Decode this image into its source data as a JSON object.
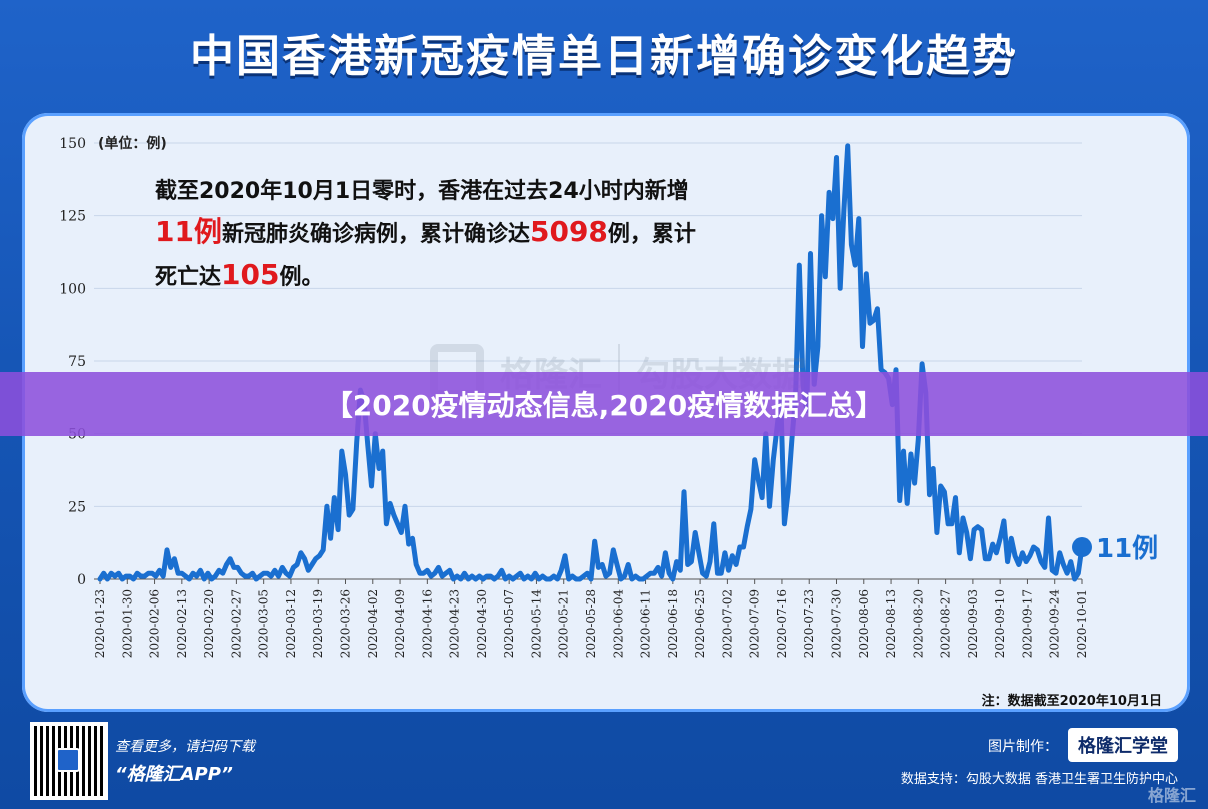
{
  "title": "中国香港新冠疫情单日新增确诊变化趋势",
  "banner": "【2020疫情动态信息,2020疫情数据汇总】",
  "annotation": {
    "line1": "截至2020年10月1日零时，香港在过去24小时内新增",
    "line2_num": "11例",
    "line2_rest_a": "新冠肺炎确诊病例，累计确诊达",
    "line2_total": "5098",
    "line2_rest_b": "例，累计",
    "line3_a": "死亡达",
    "line3_num": "105",
    "line3_b": "例。"
  },
  "watermark": {
    "brand1": "格隆汇",
    "brand2": "勾股大数据"
  },
  "note": "注：数据截至2020年10月1日",
  "footer": {
    "scan_line1": "查看更多，请扫码下载",
    "scan_line2": "“格隆汇APP”",
    "maker_label": "图片制作：",
    "maker_logo": "格隆汇学堂",
    "source": "数据支持：勾股大数据  香港卫生署卫生防护中心",
    "corner": "格隆汇"
  },
  "colors": {
    "line": "#1a6fd0",
    "accent_red": "#e0191d",
    "background_blue": "#1f63c9",
    "banner_purple": "#8c50dc"
  },
  "chart_data": {
    "type": "line",
    "ylabel": "(单位：例)",
    "ylim": [
      0,
      150
    ],
    "yticks": [
      0,
      25,
      50,
      75,
      100,
      125,
      150
    ],
    "end_label": "11例",
    "xtick_labels": [
      "2020-01-23",
      "2020-01-30",
      "2020-02-06",
      "2020-02-13",
      "2020-02-20",
      "2020-02-27",
      "2020-03-05",
      "2020-03-12",
      "2020-03-19",
      "2020-03-26",
      "2020-04-02",
      "2020-04-09",
      "2020-04-16",
      "2020-04-23",
      "2020-04-30",
      "2020-05-07",
      "2020-05-14",
      "2020-05-21",
      "2020-05-28",
      "2020-06-04",
      "2020-06-11",
      "2020-06-18",
      "2020-06-25",
      "2020-07-02",
      "2020-07-09",
      "2020-07-16",
      "2020-07-23",
      "2020-07-30",
      "2020-08-06",
      "2020-08-13",
      "2020-08-20",
      "2020-08-27",
      "2020-09-03",
      "2020-09-10",
      "2020-09-17",
      "2020-09-24",
      "2020-10-01"
    ],
    "series": [
      {
        "name": "",
        "values": [
          0,
          2,
          0,
          2,
          1,
          2,
          0,
          1,
          1,
          0,
          2,
          1,
          1,
          2,
          2,
          1,
          3,
          1,
          10,
          4,
          7,
          2,
          2,
          1,
          0,
          2,
          1,
          3,
          0,
          2,
          0,
          1,
          3,
          2,
          5,
          7,
          4,
          4,
          2,
          1,
          1,
          2,
          0,
          1,
          2,
          2,
          1,
          3,
          1,
          4,
          2,
          1,
          4,
          5,
          9,
          7,
          3,
          5,
          7,
          8,
          10,
          25,
          14,
          28,
          17,
          44,
          36,
          22,
          24,
          47,
          65,
          61,
          46,
          32,
          50,
          38,
          44,
          19,
          26,
          22,
          19,
          16,
          25,
          12,
          14,
          5,
          2,
          2,
          3,
          1,
          2,
          4,
          1,
          2,
          3,
          0,
          1,
          0,
          2,
          0,
          1,
          0,
          1,
          0,
          1,
          1,
          0,
          1,
          3,
          0,
          1,
          0,
          1,
          2,
          0,
          1,
          0,
          2,
          0,
          1,
          0,
          0,
          1,
          0,
          3,
          8,
          0,
          1,
          0,
          0,
          1,
          2,
          0,
          13,
          4,
          5,
          1,
          2,
          10,
          5,
          0,
          1,
          5,
          0,
          1,
          0,
          0,
          1,
          2,
          2,
          4,
          1,
          9,
          2,
          0,
          6,
          3,
          30,
          5,
          6,
          16,
          9,
          2,
          1,
          6,
          19,
          2,
          2,
          9,
          3,
          8,
          5,
          11,
          11,
          18,
          24,
          41,
          34,
          28,
          50,
          25,
          41,
          52,
          63,
          19,
          30,
          48,
          63,
          108,
          67,
          58,
          112,
          67,
          80,
          125,
          104,
          133,
          124,
          145,
          100,
          127,
          149,
          115,
          108,
          124,
          80,
          105,
          88,
          89,
          93,
          72,
          71,
          69,
          60,
          72,
          27,
          44,
          26,
          43,
          33,
          48,
          74,
          64,
          29,
          38,
          16,
          32,
          30,
          19,
          19,
          28,
          9,
          21,
          16,
          7,
          17,
          18,
          17,
          7,
          7,
          12,
          9,
          14,
          20,
          6,
          14,
          8,
          5,
          9,
          6,
          8,
          11,
          10,
          6,
          4,
          21,
          3,
          2,
          9,
          5,
          2,
          6,
          0,
          2,
          11
        ]
      }
    ]
  }
}
